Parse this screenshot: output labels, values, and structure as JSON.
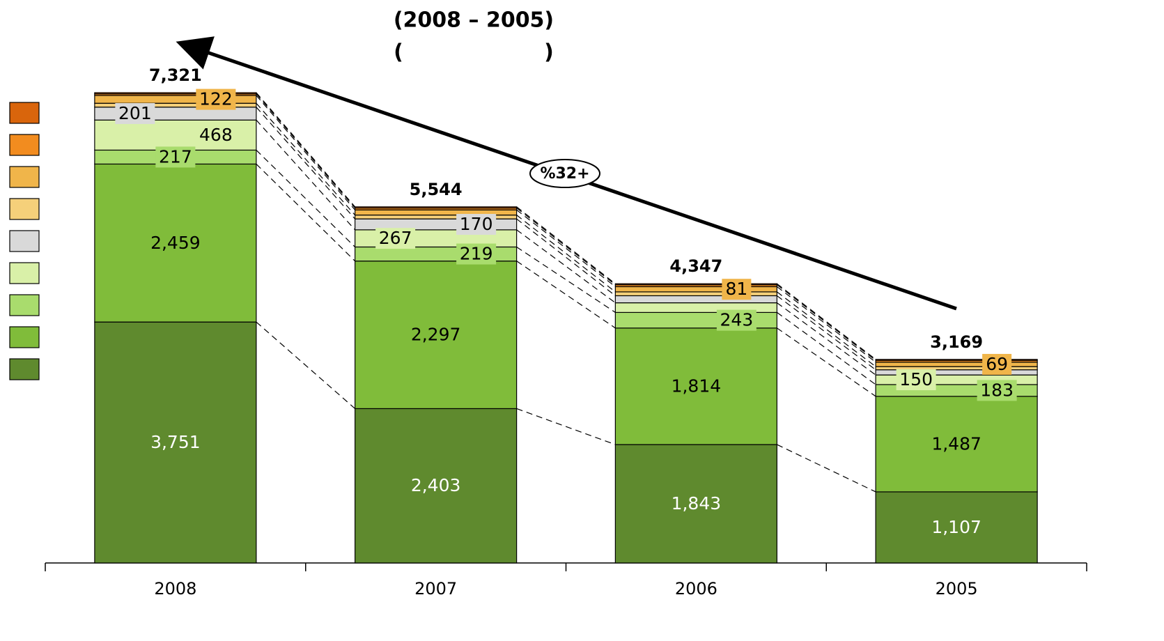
{
  "chart_data": {
    "type": "bar",
    "stacked": true,
    "title": "(2008 – 2005)",
    "subtitle_parts": [
      "(",
      ")"
    ],
    "annotation": "%32+",
    "categories": [
      "2008",
      "2007",
      "2006",
      "2005"
    ],
    "totals": [
      7321,
      5544,
      4347,
      3169
    ],
    "totals_labels": [
      "7,321",
      "5,544",
      "4,347",
      "3,169"
    ],
    "ylim": [
      0,
      7321
    ],
    "series": [
      {
        "color": "#5f8a2e",
        "values": [
          3751,
          2403,
          1843,
          1107
        ],
        "value_labels": [
          "3,751",
          "2,403",
          "1,843",
          "1,107"
        ]
      },
      {
        "color": "#80bc3a",
        "values": [
          2459,
          2297,
          1814,
          1487
        ],
        "value_labels": [
          "2,459",
          "2,297",
          "1,814",
          "1,487"
        ]
      },
      {
        "color": "#a9dc6d",
        "values": [
          217,
          219,
          243,
          183
        ],
        "value_labels": [
          "217",
          "219",
          "243",
          "183"
        ]
      },
      {
        "color": "#d9f0a8",
        "values": [
          468,
          267,
          150,
          150
        ],
        "value_labels": [
          "468",
          "267",
          null,
          "150"
        ]
      },
      {
        "color": "#d9d9d9",
        "values": [
          201,
          170,
          110,
          80
        ],
        "value_labels": [
          "201",
          "170",
          null,
          null
        ]
      },
      {
        "color": "#f5d07a",
        "values": [
          60,
          60,
          60,
          50
        ],
        "value_labels": [
          null,
          null,
          null,
          null
        ]
      },
      {
        "color": "#f0b54a",
        "values": [
          122,
          80,
          81,
          69
        ],
        "value_labels": [
          "122",
          null,
          "81",
          "69"
        ]
      },
      {
        "color": "#f28c1f",
        "values": [
          25,
          30,
          30,
          28
        ],
        "value_labels": [
          null,
          null,
          null,
          null
        ]
      },
      {
        "color": "#d9650c",
        "values": [
          18,
          18,
          16,
          15
        ],
        "value_labels": [
          null,
          null,
          null,
          null
        ]
      }
    ]
  }
}
